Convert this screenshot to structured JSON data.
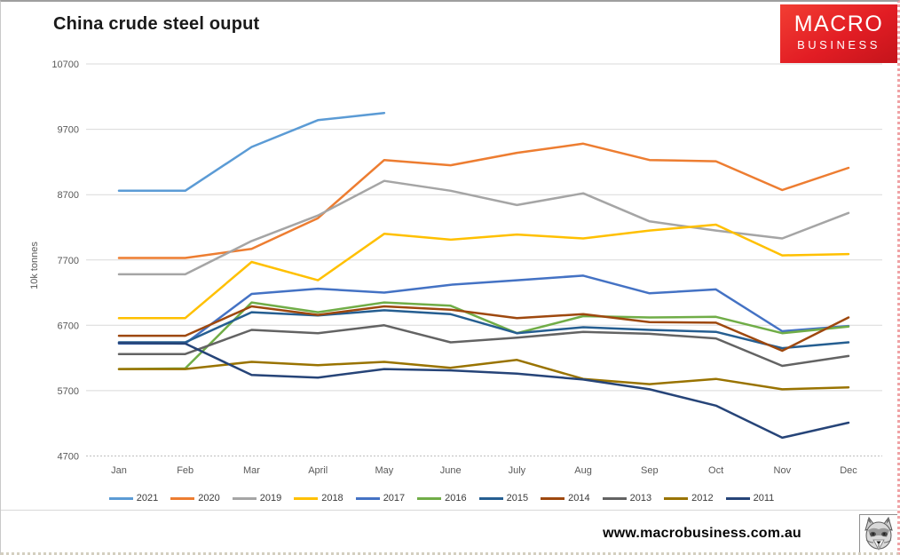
{
  "header": {
    "title": "China crude steel ouput",
    "logo": {
      "line1": "MACRO",
      "line2": "BUSINESS",
      "bg_color": "#e21d24",
      "text_color": "#ffffff"
    }
  },
  "footer": {
    "website": "www.macrobusiness.com.au",
    "wolf_icon": "wolf-head-icon"
  },
  "chart_data": {
    "type": "line",
    "title": "China crude steel ouput",
    "xlabel": "",
    "ylabel": "10k tonnes",
    "ylim": [
      4700,
      10700
    ],
    "yticks": [
      10700,
      9700,
      8700,
      7700,
      6700,
      5700,
      4700
    ],
    "grid": "horizontal",
    "legend_position": "bottom",
    "categories": [
      "Jan",
      "Feb",
      "Mar",
      "April",
      "May",
      "June",
      "July",
      "Aug",
      "Sep",
      "Oct",
      "Nov",
      "Dec"
    ],
    "series": [
      {
        "name": "2021",
        "color": "#5B9BD5",
        "values": [
          8760,
          8760,
          9430,
          9840,
          9950,
          null,
          null,
          null,
          null,
          null,
          null,
          null
        ]
      },
      {
        "name": "2020",
        "color": "#ED7D31",
        "values": [
          7730,
          7730,
          7870,
          8340,
          9230,
          9150,
          9340,
          9480,
          9230,
          9210,
          8770,
          9110
        ]
      },
      {
        "name": "2019",
        "color": "#A5A5A5",
        "values": [
          7480,
          7480,
          7990,
          8380,
          8910,
          8760,
          8540,
          8720,
          8290,
          8150,
          8030,
          8420
        ]
      },
      {
        "name": "2018",
        "color": "#FFC000",
        "values": [
          6810,
          6810,
          7670,
          7390,
          8100,
          8010,
          8090,
          8030,
          8150,
          8240,
          7770,
          7790
        ]
      },
      {
        "name": "2017",
        "color": "#4472C4",
        "values": [
          6420,
          6420,
          7180,
          7260,
          7200,
          7320,
          7390,
          7460,
          7190,
          7250,
          6610,
          6690
        ]
      },
      {
        "name": "2016",
        "color": "#70AD47",
        "values": [
          6030,
          6040,
          7050,
          6900,
          7050,
          7000,
          6580,
          6840,
          6820,
          6830,
          6580,
          6680
        ]
      },
      {
        "name": "2015",
        "color": "#255E91",
        "values": [
          6440,
          6440,
          6900,
          6850,
          6930,
          6870,
          6580,
          6670,
          6630,
          6600,
          6350,
          6440
        ]
      },
      {
        "name": "2014",
        "color": "#9E480E",
        "values": [
          6540,
          6540,
          6990,
          6860,
          6990,
          6940,
          6810,
          6870,
          6750,
          6740,
          6310,
          6820
        ]
      },
      {
        "name": "2013",
        "color": "#636363",
        "values": [
          6260,
          6260,
          6630,
          6580,
          6700,
          6440,
          6510,
          6600,
          6570,
          6500,
          6080,
          6230
        ]
      },
      {
        "name": "2012",
        "color": "#997300",
        "values": [
          6030,
          6030,
          6140,
          6090,
          6140,
          6050,
          6170,
          5880,
          5800,
          5880,
          5720,
          5750
        ]
      },
      {
        "name": "2011",
        "color": "#264478",
        "values": [
          6430,
          6420,
          5940,
          5900,
          6030,
          6010,
          5960,
          5870,
          5720,
          5470,
          4980,
          5210
        ]
      }
    ]
  }
}
